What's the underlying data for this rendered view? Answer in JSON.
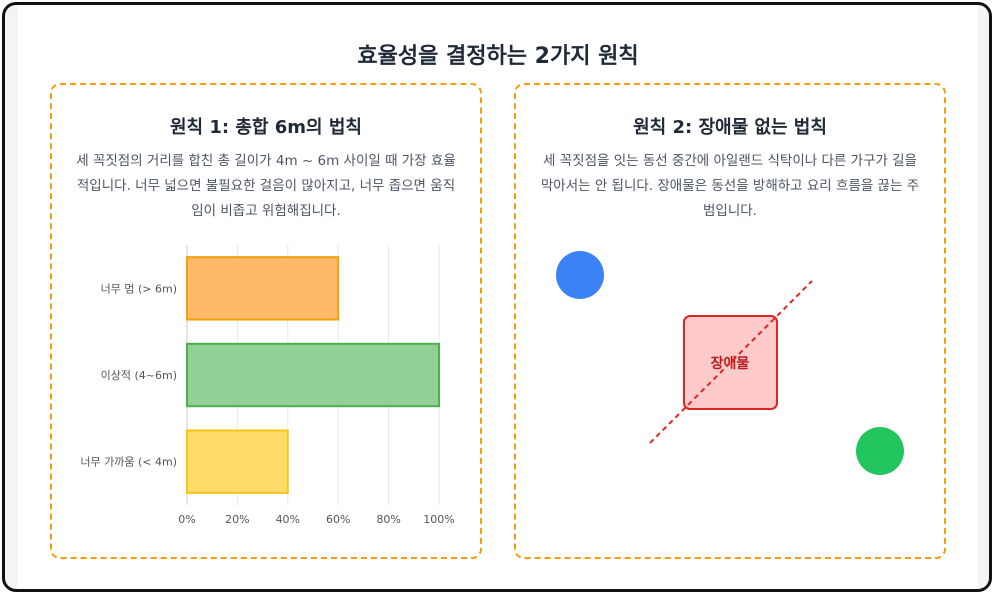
{
  "page": {
    "title": "효율성을 결정하는 2가지 원칙"
  },
  "left_panel": {
    "title": "원칙 1: 총합 6m의 법칙",
    "description": "세 꼭짓점의 거리를 합친 총 길이가 4m ~ 6m 사이일 때 가장 효율적입니다. 너무 넓으면 불필요한 걸음이 많아지고, 너무 좁으면 움직임이 비좁고 위험해집니다."
  },
  "right_panel": {
    "title": "원칙 2: 장애물 없는 법칙",
    "description": "세 꼭짓점을 잇는 동선 중간에 아일랜드 식탁이나 다른 가구가 길을 막아서는 안 됩니다. 장애물은 동선을 방해하고 요리 흐름을 끊는 주범입니다.",
    "obstacle_label": "장애물",
    "colors": {
      "point_a": "#3b82f6",
      "point_b": "#22c55e",
      "obstacle_fill": "#fecaca",
      "obstacle_stroke": "#dc2626",
      "path_line": "#dc2626"
    }
  },
  "chart_data": {
    "type": "bar",
    "orientation": "horizontal",
    "categories": [
      "너무 멈 (> 6m)",
      "이상적 (4~6m)",
      "너무 가까움 (< 4m)"
    ],
    "values": [
      60,
      100,
      40
    ],
    "xlim": [
      0,
      100
    ],
    "xticks": [
      "0%",
      "20%",
      "40%",
      "60%",
      "80%",
      "100%"
    ],
    "grid": true,
    "legend": "none",
    "colors": [
      {
        "fill": "#fdba6b",
        "stroke": "#f59e0b"
      },
      {
        "fill": "#93d095",
        "stroke": "#4caf50"
      },
      {
        "fill": "#fddc6a",
        "stroke": "#f5c518"
      }
    ]
  }
}
